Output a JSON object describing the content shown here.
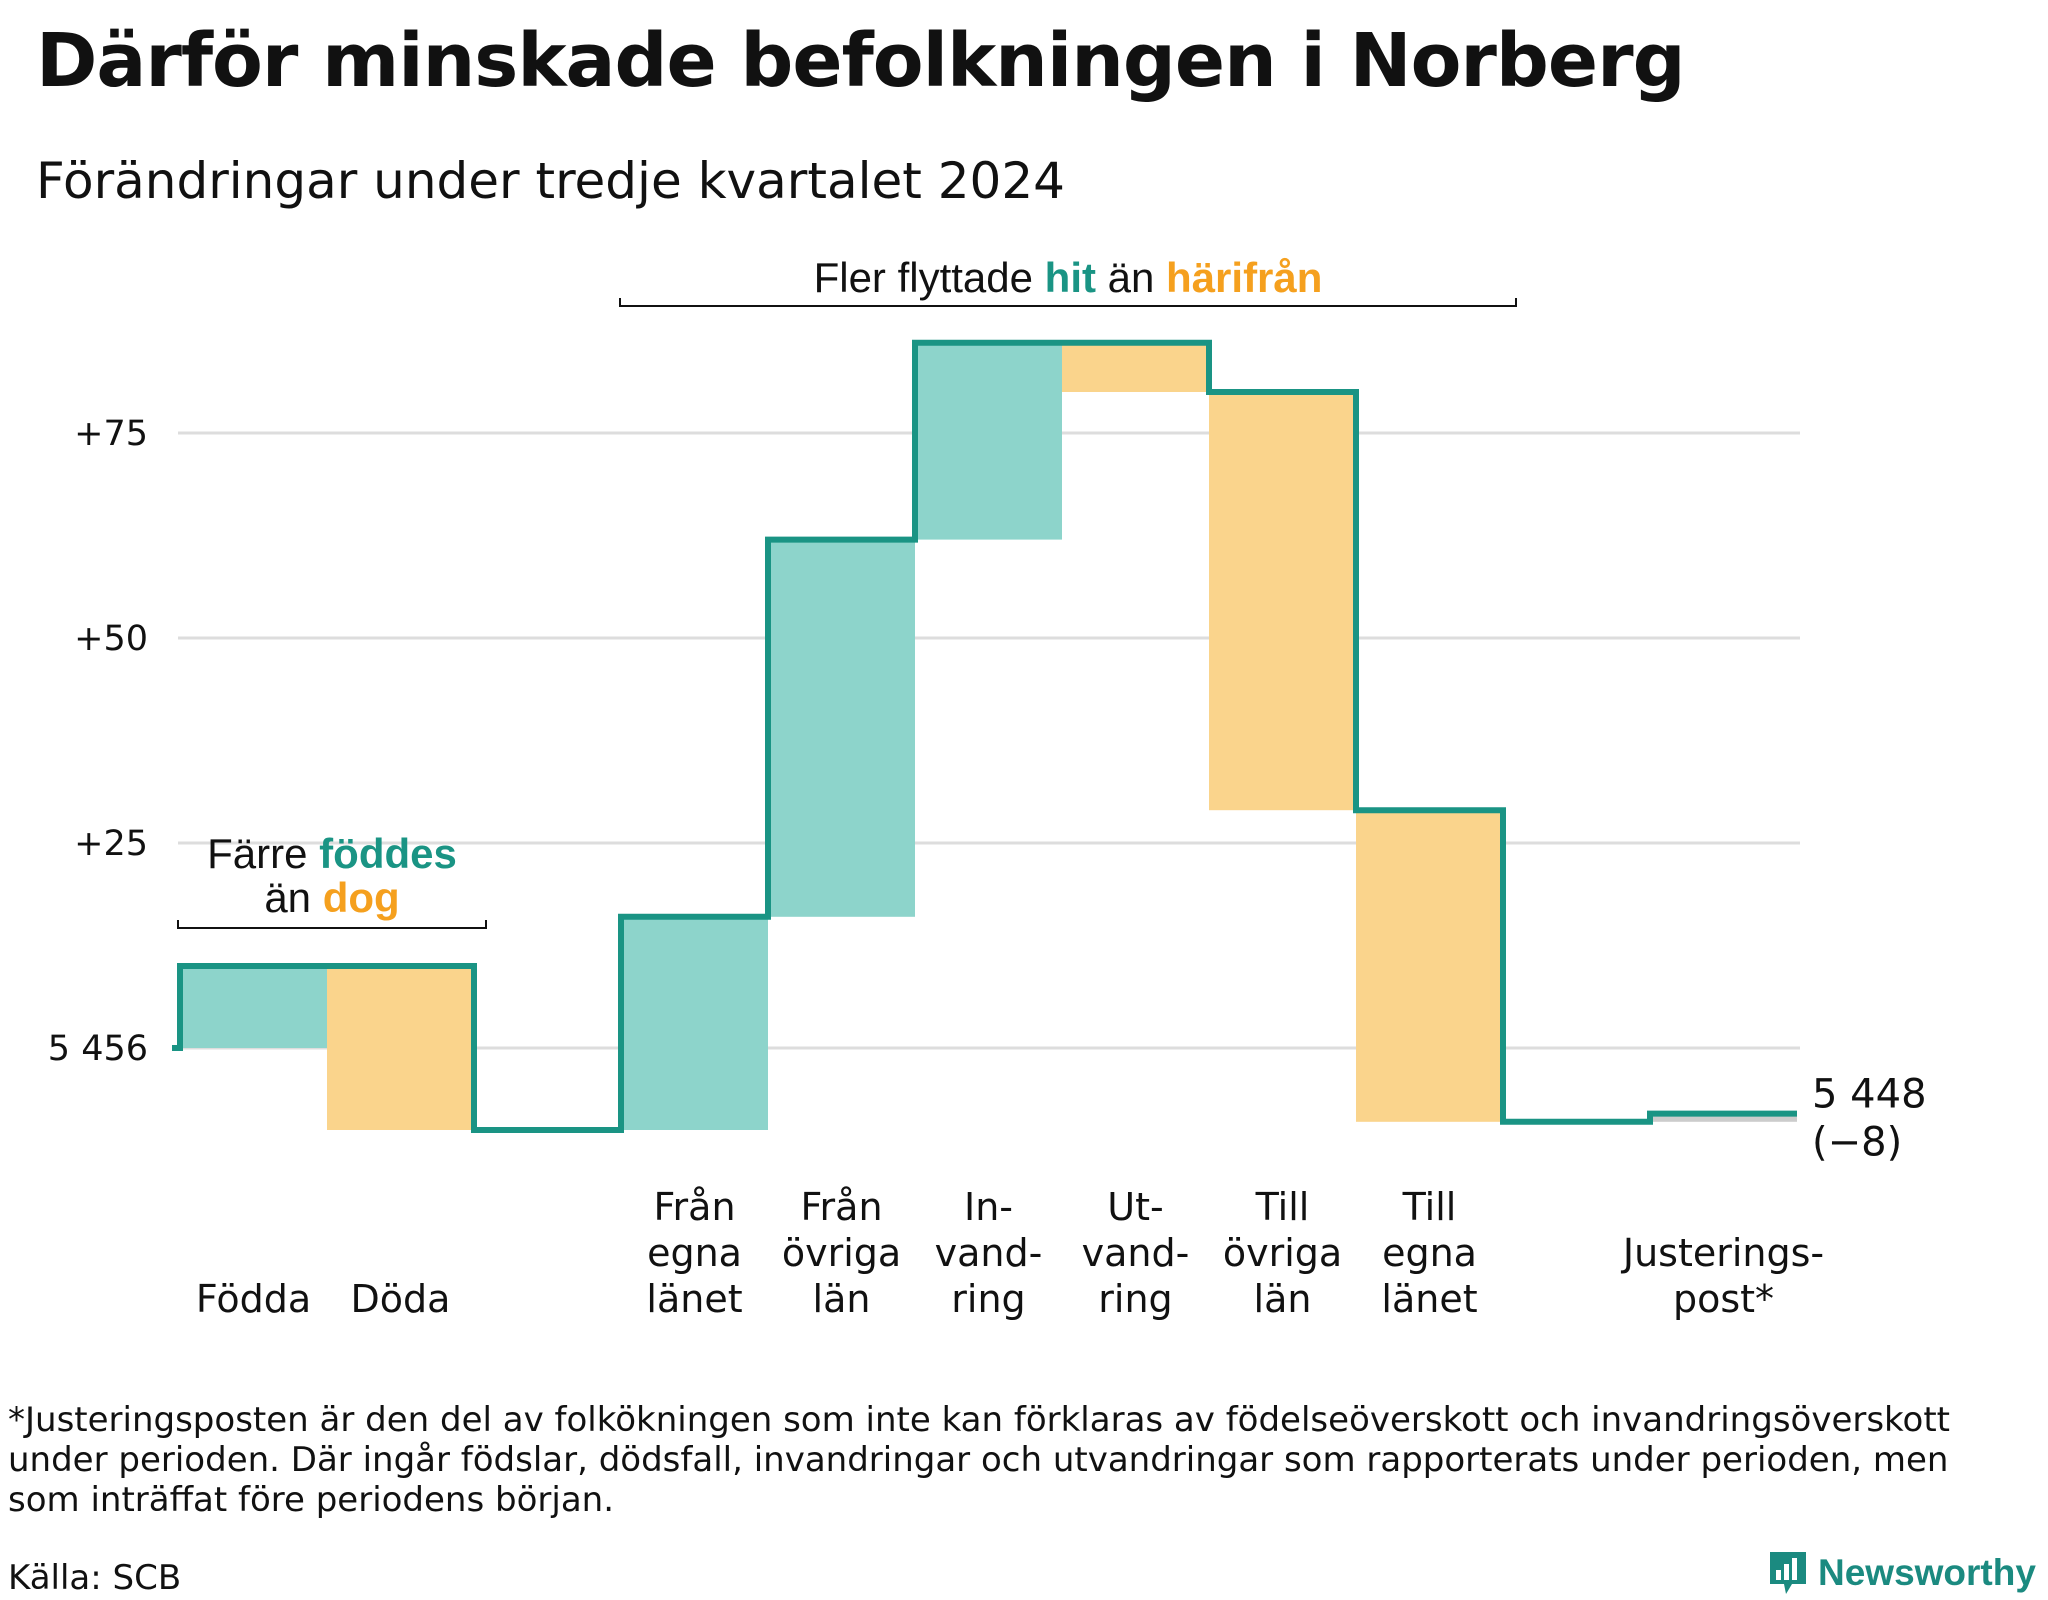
{
  "title": "Därför minskade befolkningen i Norberg",
  "subtitle": "Förändringar under tredje kvartalet 2024",
  "colors": {
    "increase": "#8dd4cb",
    "decrease": "#fad48c",
    "line": "#1a9484",
    "adjustment": "#cccccc",
    "teal_text": "#1a9484",
    "orange_text": "#f5a01e",
    "grid": "#dddddd"
  },
  "annotations": {
    "births": {
      "prefix": "Färre",
      "highlight1": "föddes",
      "line2_prefix": "än",
      "highlight2": "dog"
    },
    "migration": {
      "prefix": "Fler flyttade",
      "highlight1": "hit",
      "middle": "än",
      "highlight2": "härifrån"
    }
  },
  "chart_data": {
    "type": "waterfall",
    "start_value": 5456,
    "y_tick_labels": [
      "5 456",
      "+25",
      "+50",
      "+75"
    ],
    "y_tick_values": [
      0,
      25,
      50,
      75
    ],
    "ylim": [
      -16,
      90
    ],
    "categories": [
      {
        "label": "Födda",
        "lines": [
          "Födda"
        ],
        "change": 10
      },
      {
        "label": "Döda",
        "lines": [
          "Döda"
        ],
        "change": -20
      },
      {
        "label": "Från egna länet",
        "lines": [
          "Från",
          "egna",
          "länet"
        ],
        "change": 26
      },
      {
        "label": "Från övriga län",
        "lines": [
          "Från",
          "övriga",
          "län"
        ],
        "change": 46
      },
      {
        "label": "Invandring",
        "lines": [
          "In-",
          "vand-",
          "ring"
        ],
        "change": 24
      },
      {
        "label": "Utvandring",
        "lines": [
          "Ut-",
          "vand-",
          "ring"
        ],
        "change": -6
      },
      {
        "label": "Till övriga län",
        "lines": [
          "Till",
          "övriga",
          "län"
        ],
        "change": -51
      },
      {
        "label": "Till egna länet",
        "lines": [
          "Till",
          "egna",
          "länet"
        ],
        "change": -38
      },
      {
        "label": "Justeringspost*",
        "lines": [
          "Justerings-",
          "post*"
        ],
        "change": 1
      }
    ],
    "end_value_label": "5 448",
    "end_change_label": "(−8)"
  },
  "footnote": {
    "line1": "*Justeringsposten är den del av folkökningen som inte kan förklaras av födelseöverskott och invandringsöverskott",
    "line2": "under perioden. Där ingår födslar, dödsfall, invandringar och utvandringar som rapporterats under perioden, men",
    "line3": "som inträffat före periodens början."
  },
  "source": "Källa: SCB",
  "brand": "Newsworthy"
}
